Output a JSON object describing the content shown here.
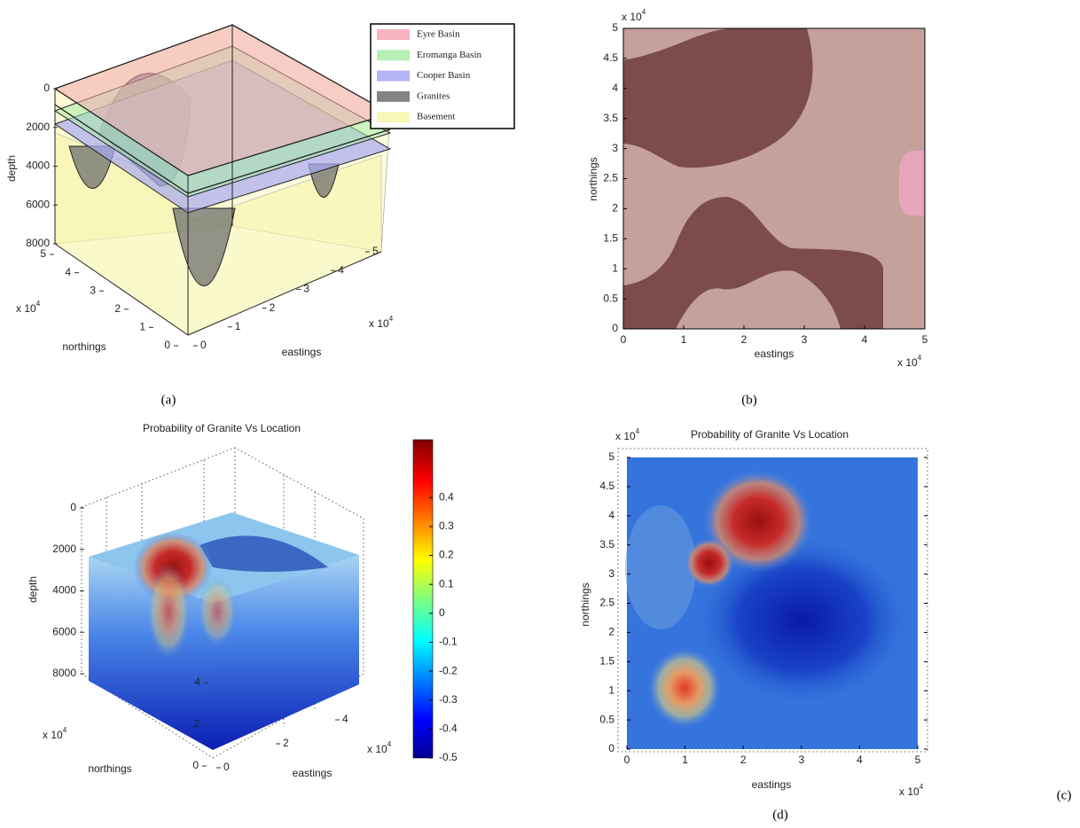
{
  "panel_a": {
    "caption": "(a)",
    "legend": [
      {
        "label": "Eyre Basin",
        "color": "#f4a7b5"
      },
      {
        "label": "Eromanga Basin",
        "color": "#a8eca8"
      },
      {
        "label": "Cooper Basin",
        "color": "#a8a8f2"
      },
      {
        "label": "Granites",
        "color": "#6f6f6f"
      },
      {
        "label": "Basement",
        "color": "#f7f5a8"
      }
    ],
    "depth_label": "depth",
    "depth_ticks": [
      0,
      2000,
      4000,
      6000,
      8000
    ],
    "northings_label": "northings",
    "northings_ticks": [
      0,
      1,
      2,
      3,
      4,
      5
    ],
    "eastings_label": "eastings",
    "eastings_ticks": [
      0,
      1,
      2,
      3,
      4,
      5
    ],
    "multiplier_base": "x 10",
    "multiplier_power": "4"
  },
  "panel_b": {
    "caption": "(b)",
    "xlabel": "eastings",
    "ylabel": "northings",
    "xlim": [
      0,
      5
    ],
    "ylim": [
      0,
      5
    ],
    "xticks": [
      0,
      1,
      2,
      3,
      4,
      5
    ],
    "yticks": [
      0,
      0.5,
      1,
      1.5,
      2,
      2.5,
      3,
      3.5,
      4,
      4.5,
      5
    ],
    "multiplier_base": "x 10",
    "multiplier_power": "4",
    "background_color": "#c5a19b",
    "granite_color": "#7b4c49",
    "eyre_color": "#e7a6bd"
  },
  "panel_c": {
    "caption": "(c)",
    "title": "Probability of Granite Vs Location",
    "depth_label": "depth",
    "depth_ticks": [
      0,
      2000,
      4000,
      6000,
      8000
    ],
    "northings_label": "northings",
    "northings_ticks": [
      0,
      2,
      4
    ],
    "eastings_label": "eastings",
    "eastings_ticks": [
      0,
      2,
      4
    ],
    "multiplier_base": "x 10",
    "multiplier_power": "4",
    "colorbar_lim": [
      -0.5,
      0.6
    ],
    "colorbar_ticks": [
      -0.5,
      -0.4,
      -0.3,
      -0.2,
      -0.1,
      0,
      0.1,
      0.2,
      0.3,
      0.4
    ]
  },
  "panel_d": {
    "caption": "(d)",
    "title": "Probability of Granite Vs Location",
    "xlabel": "eastings",
    "ylabel": "northings",
    "xlim": [
      0,
      5
    ],
    "ylim": [
      0,
      5
    ],
    "xticks": [
      0,
      1,
      2,
      3,
      4,
      5
    ],
    "yticks": [
      0,
      0.5,
      1,
      1.5,
      2,
      2.5,
      3,
      3.5,
      4,
      4.5,
      5
    ],
    "multiplier_base": "x 10",
    "multiplier_power": "4"
  }
}
